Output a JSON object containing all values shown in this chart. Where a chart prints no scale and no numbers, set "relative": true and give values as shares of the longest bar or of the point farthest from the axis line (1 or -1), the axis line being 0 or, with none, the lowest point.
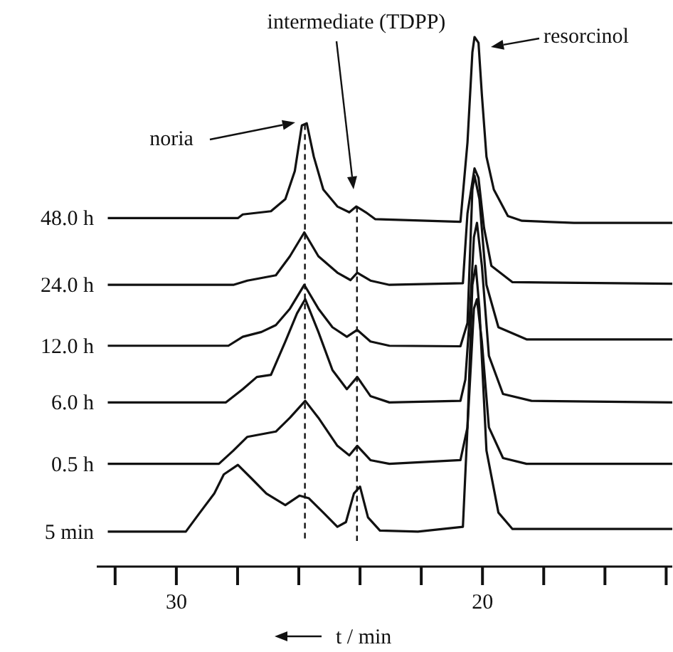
{
  "chart_data": {
    "type": "line",
    "relative": true,
    "xlabel": "t / min",
    "xlim": [
      32.6,
      13.8
    ],
    "xticks": [
      {
        "value": 32,
        "label": null
      },
      30,
      {
        "value": 28,
        "label": null
      },
      {
        "value": 26,
        "label": null
      },
      {
        "value": 24,
        "label": null
      },
      {
        "value": 22,
        "label": null
      },
      20,
      {
        "value": 18,
        "label": null
      },
      {
        "value": 16,
        "label": null
      },
      {
        "value": 14,
        "label": null
      }
    ],
    "tick_labels": "x",
    "grid": false,
    "legend": false,
    "marker": "none",
    "line_style": "solid",
    "series": [
      {
        "name": "48.0 h",
        "color": "#111111",
        "x": [
          32.24,
          27.99,
          27.83,
          26.91,
          26.44,
          26.13,
          25.9,
          25.74,
          25.51,
          25.2,
          24.74,
          24.35,
          24.12,
          23.81,
          23.5,
          20.72,
          20.49,
          20.33,
          20.26,
          20.13,
          20.02,
          19.87,
          19.63,
          19.17,
          18.71,
          17.01,
          13.8
        ],
        "values": [
          0.658,
          0.658,
          0.665,
          0.671,
          0.694,
          0.747,
          0.833,
          0.837,
          0.774,
          0.712,
          0.68,
          0.669,
          0.68,
          0.669,
          0.656,
          0.651,
          0.801,
          0.971,
          1.0,
          0.989,
          0.891,
          0.774,
          0.712,
          0.662,
          0.653,
          0.649,
          0.649
        ]
      },
      {
        "name": "24.0 h",
        "color": "#111111",
        "x": [
          32.24,
          28.14,
          27.68,
          26.75,
          26.29,
          25.82,
          25.36,
          24.74,
          24.31,
          24.09,
          23.66,
          23.04,
          20.64,
          20.49,
          20.26,
          20.13,
          19.95,
          19.71,
          19.02,
          13.8
        ],
        "values": [
          0.532,
          0.532,
          0.54,
          0.55,
          0.586,
          0.631,
          0.586,
          0.555,
          0.541,
          0.555,
          0.54,
          0.532,
          0.535,
          0.667,
          0.752,
          0.734,
          0.64,
          0.568,
          0.537,
          0.534
        ]
      },
      {
        "name": "12.0 h",
        "color": "#111111",
        "x": [
          32.24,
          28.3,
          27.83,
          27.22,
          26.75,
          26.29,
          25.82,
          25.36,
          24.9,
          24.43,
          24.09,
          23.66,
          23.04,
          20.72,
          20.49,
          20.33,
          20.26,
          20.1,
          19.87,
          19.48,
          18.56,
          13.8
        ],
        "values": [
          0.417,
          0.417,
          0.434,
          0.443,
          0.456,
          0.487,
          0.532,
          0.487,
          0.452,
          0.434,
          0.447,
          0.425,
          0.417,
          0.416,
          0.46,
          0.712,
          0.738,
          0.694,
          0.532,
          0.452,
          0.429,
          0.429
        ]
      },
      {
        "name": "6.0 h",
        "color": "#111111",
        "x": [
          32.24,
          28.38,
          27.83,
          27.37,
          26.91,
          26.44,
          26.06,
          25.79,
          25.36,
          24.9,
          24.43,
          24.09,
          23.66,
          23.04,
          20.72,
          20.56,
          20.41,
          20.28,
          20.18,
          20.02,
          19.79,
          19.33,
          18.4,
          13.8
        ],
        "values": [
          0.31,
          0.31,
          0.335,
          0.358,
          0.362,
          0.425,
          0.478,
          0.505,
          0.443,
          0.371,
          0.335,
          0.358,
          0.322,
          0.31,
          0.313,
          0.353,
          0.478,
          0.622,
          0.649,
          0.568,
          0.398,
          0.326,
          0.313,
          0.31
        ]
      },
      {
        "name": "0.5 h",
        "color": "#111111",
        "x": [
          32.24,
          28.61,
          28.14,
          27.68,
          26.75,
          26.29,
          25.79,
          25.36,
          24.74,
          24.35,
          24.09,
          23.66,
          23.04,
          20.72,
          20.49,
          20.28,
          20.18,
          20.02,
          19.79,
          19.33,
          18.56,
          13.8
        ],
        "values": [
          0.194,
          0.194,
          0.219,
          0.245,
          0.255,
          0.281,
          0.313,
          0.281,
          0.228,
          0.21,
          0.228,
          0.201,
          0.194,
          0.201,
          0.263,
          0.487,
          0.505,
          0.425,
          0.263,
          0.205,
          0.194,
          0.194
        ]
      },
      {
        "name": "5 min",
        "color": "#111111",
        "x": [
          32.24,
          29.69,
          29.23,
          28.76,
          28.45,
          27.99,
          27.52,
          27.06,
          26.44,
          25.98,
          25.67,
          25.2,
          24.74,
          24.46,
          24.2,
          24.0,
          23.74,
          23.35,
          22.11,
          20.64,
          20.49,
          20.33,
          20.22,
          20.1,
          19.87,
          19.48,
          19.02,
          13.8
        ],
        "values": [
          0.066,
          0.066,
          0.102,
          0.138,
          0.174,
          0.192,
          0.165,
          0.138,
          0.116,
          0.134,
          0.129,
          0.102,
          0.075,
          0.084,
          0.138,
          0.151,
          0.093,
          0.068,
          0.066,
          0.075,
          0.263,
          0.532,
          0.568,
          0.487,
          0.219,
          0.102,
          0.071,
          0.071
        ]
      }
    ],
    "ref_lines": [
      {
        "axis": "x",
        "value": 25.8,
        "color": "#111111",
        "line_style": "dashed"
      },
      {
        "axis": "x",
        "value": 24.1,
        "color": "#111111",
        "line_style": "dashed"
      }
    ],
    "annotations": [
      "noria",
      "intermediate (TDPP)",
      "resorcinol"
    ]
  }
}
